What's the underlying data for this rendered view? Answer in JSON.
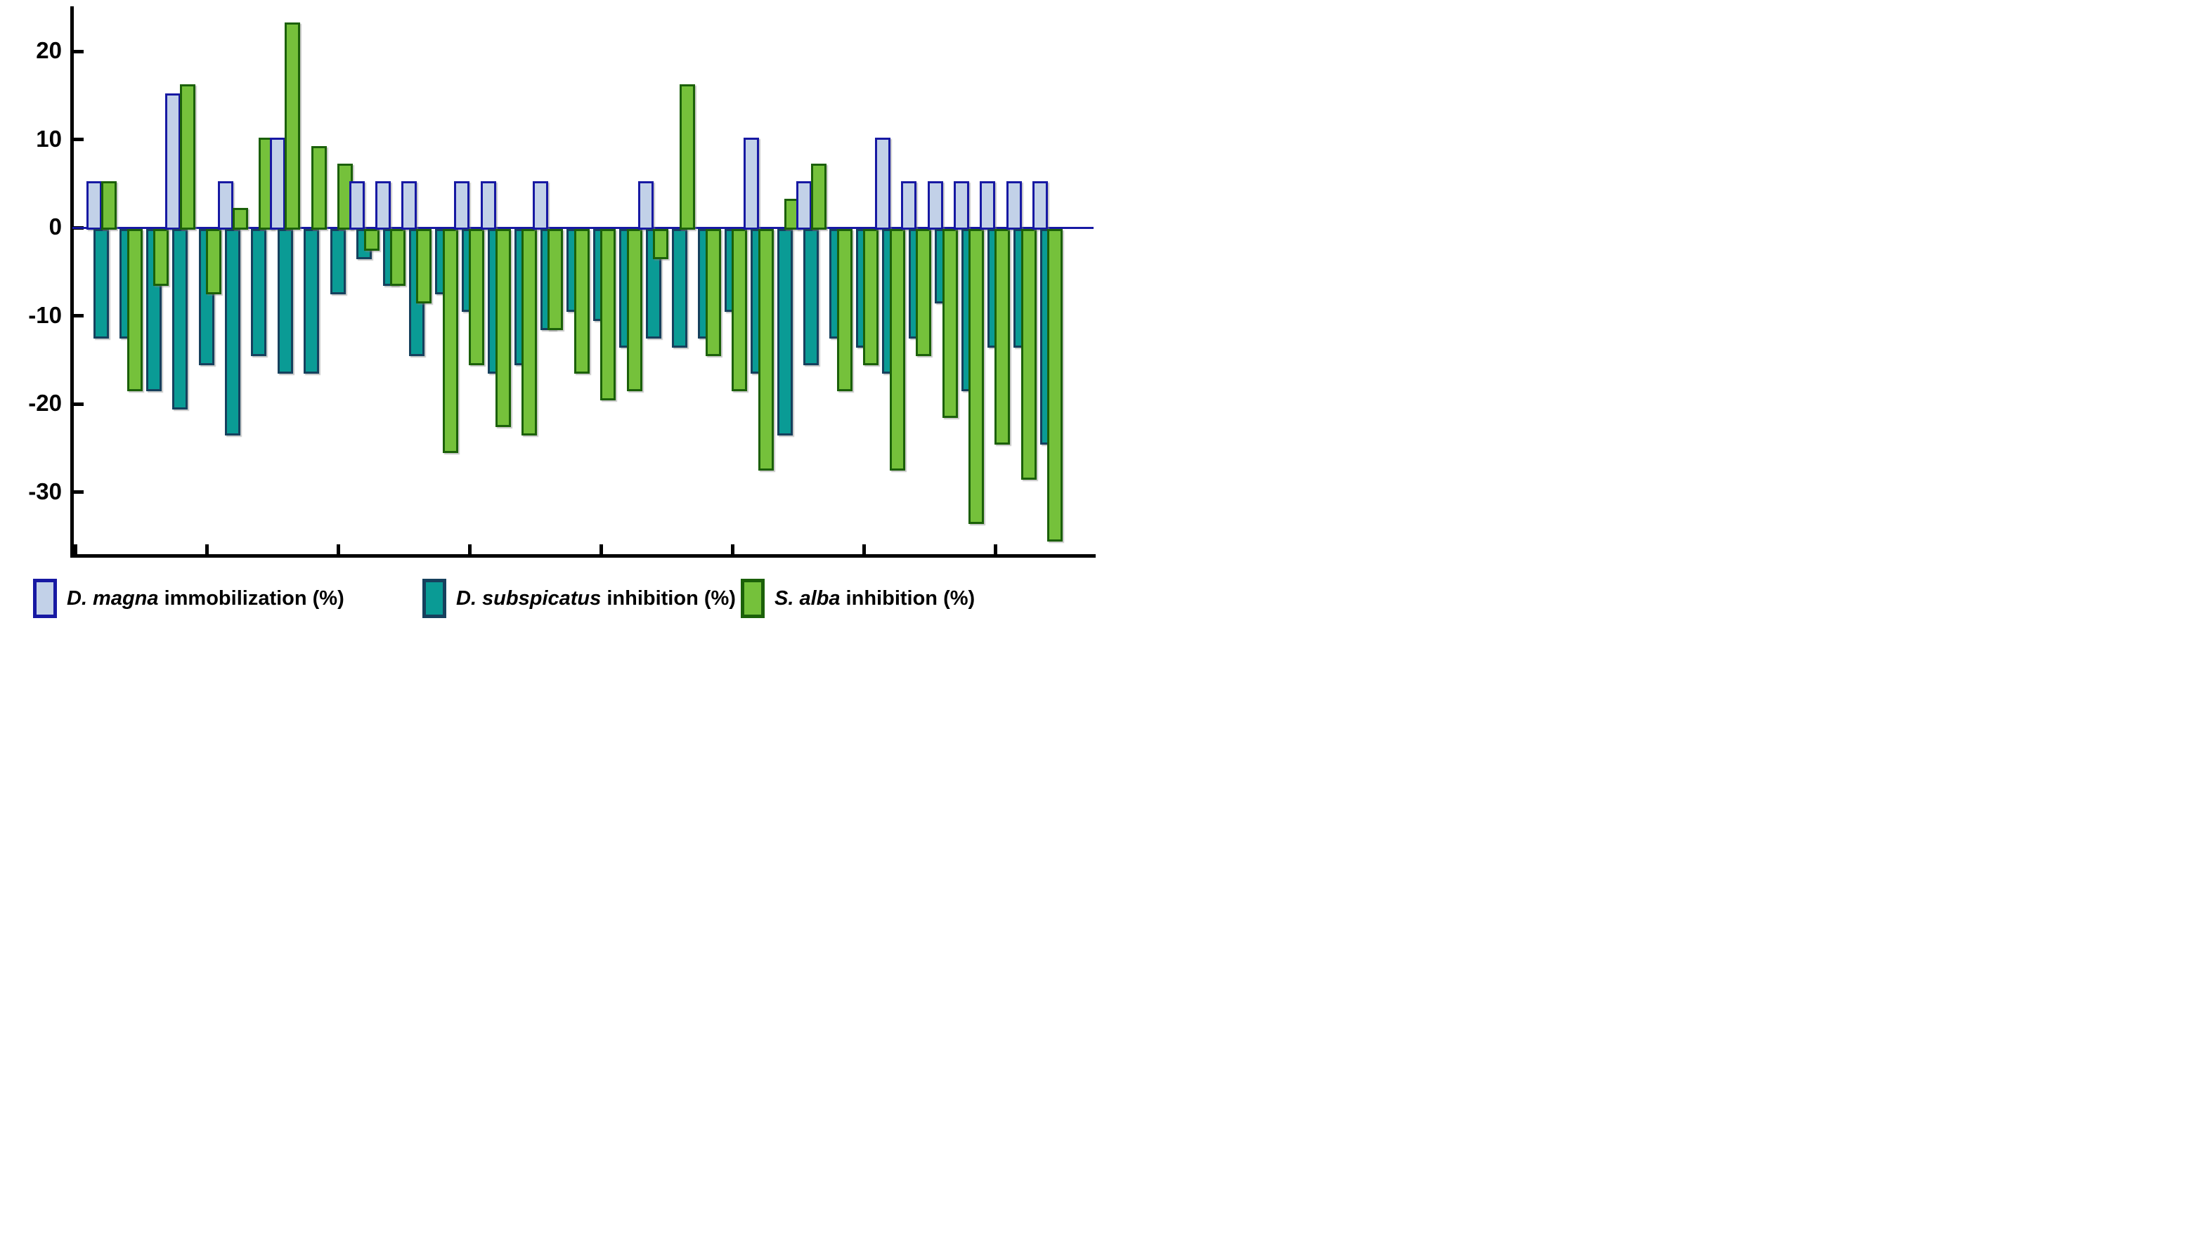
{
  "figure": {
    "background": "#ffffff"
  },
  "chart_data": {
    "type": "bar",
    "title": "",
    "xlabel": "",
    "ylabel": "",
    "n_groups": 37,
    "grid": false,
    "legend_position": "bottom",
    "ylim": [
      -37,
      25
    ],
    "y_ticks": [
      20,
      10,
      0,
      -10,
      -20,
      -30
    ],
    "x_tick_count": 8,
    "zero_line_color": "#1719a3",
    "series": [
      {
        "name": "D. magna immobilization (%)",
        "fill": "#c2d1e8",
        "border": "#1719a3",
        "values": [
          5,
          0,
          0,
          15,
          0,
          5,
          0,
          10,
          0,
          0,
          5,
          5,
          5,
          0,
          5,
          5,
          0,
          5,
          0,
          0,
          0,
          5,
          0,
          0,
          0,
          10,
          0,
          5,
          0,
          0,
          10,
          5,
          5,
          5,
          5,
          5,
          5
        ]
      },
      {
        "name": "D. subspicatus inhibition (%)",
        "fill": "#0a9b95",
        "border": "#16405d",
        "values": [
          -12,
          -12,
          -18,
          -20,
          -15,
          -23,
          -14,
          -16,
          -16,
          -7,
          -3,
          -6,
          -14,
          -7,
          -9,
          -16,
          -15,
          -11,
          -9,
          -10,
          -13,
          -12,
          -13,
          -12,
          -9,
          -16,
          -23,
          -15,
          -12,
          -13,
          -16,
          -12,
          -8,
          -18,
          -13,
          -13,
          -24
        ]
      },
      {
        "name": "S. alba inhibition (%)",
        "fill": "#75c13b",
        "border": "#1b6009",
        "values": [
          5,
          -18,
          -6,
          16,
          -7,
          2,
          10,
          23,
          9,
          7,
          -2,
          -6,
          -8,
          -25,
          -15,
          -22,
          -23,
          -11,
          -16,
          -19,
          -18,
          -3,
          16,
          -14,
          -18,
          -27,
          3,
          7,
          -18,
          -15,
          -27,
          -14,
          -21,
          -33,
          -24,
          -28,
          -35
        ]
      }
    ]
  },
  "legend": {
    "items": [
      {
        "species": "D. magna",
        "rest": " immobilization (%)"
      },
      {
        "species": "D. subspicatus",
        "rest": " inhibition (%)"
      },
      {
        "species": "S. alba",
        "rest": " inhibition (%)"
      }
    ]
  }
}
